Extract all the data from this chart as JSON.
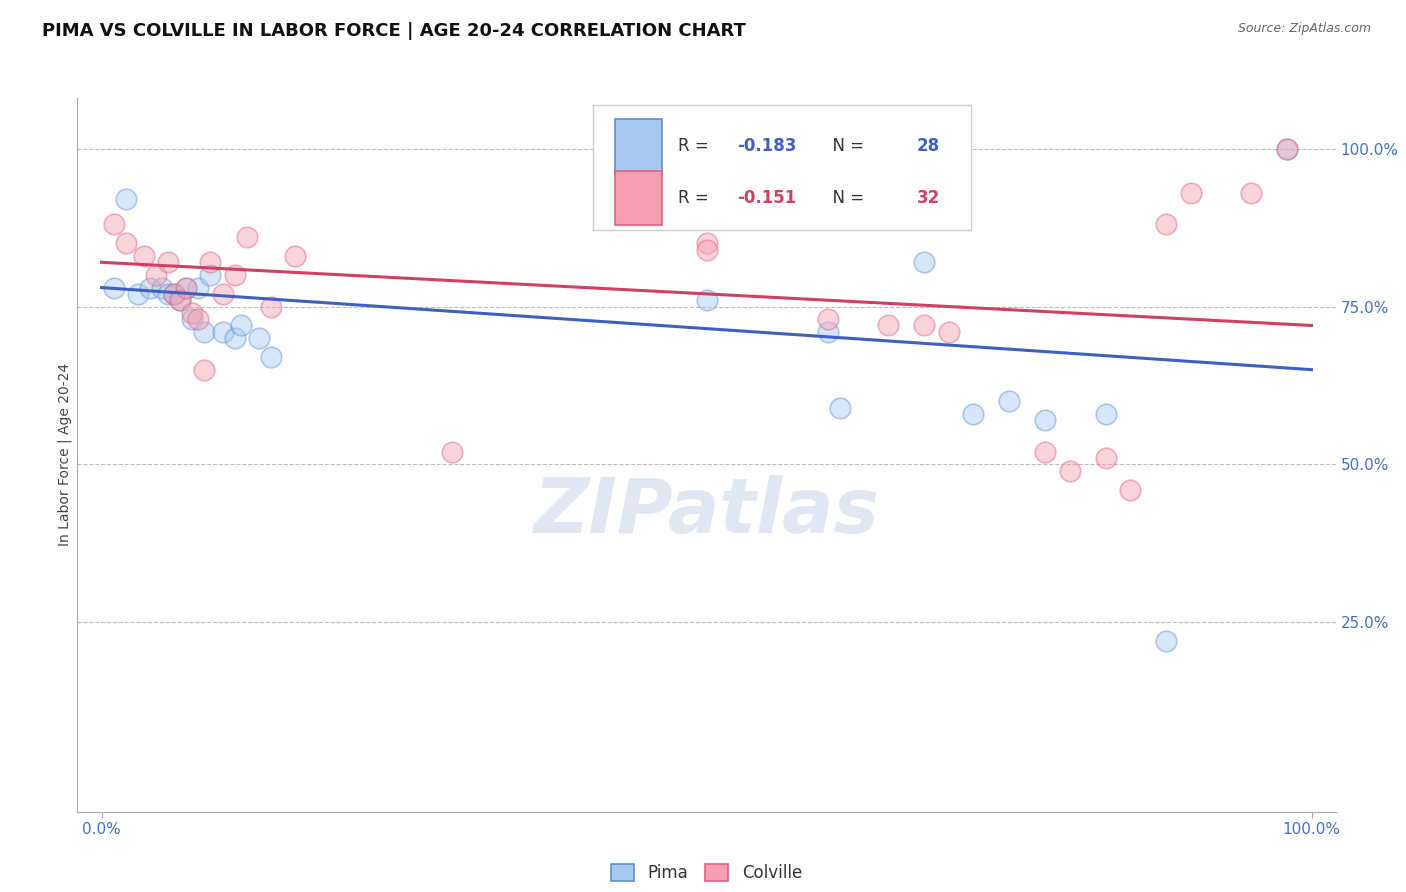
{
  "title": "PIMA VS COLVILLE IN LABOR FORCE | AGE 20-24 CORRELATION CHART",
  "source_text": "Source: ZipAtlas.com",
  "ylabel": "In Labor Force | Age 20-24",
  "watermark": "ZIPatlas",
  "blue_R": -0.183,
  "blue_N": 28,
  "pink_R": -0.151,
  "pink_N": 32,
  "legend_label_blue": "Pima",
  "legend_label_pink": "Colville",
  "xlim": [
    -0.02,
    1.02
  ],
  "ylim": [
    -0.05,
    1.08
  ],
  "x_ticks": [
    0.0,
    1.0
  ],
  "x_tick_labels": [
    "0.0%",
    "100.0%"
  ],
  "y_ticks_right": [
    0.25,
    0.5,
    0.75,
    1.0
  ],
  "y_tick_labels_right": [
    "25.0%",
    "50.0%",
    "75.0%",
    "100.0%"
  ],
  "blue_x": [
    0.01,
    0.02,
    0.03,
    0.04,
    0.05,
    0.055,
    0.06,
    0.065,
    0.07,
    0.075,
    0.08,
    0.085,
    0.09,
    0.1,
    0.11,
    0.115,
    0.13,
    0.14,
    0.5,
    0.6,
    0.61,
    0.68,
    0.72,
    0.75,
    0.78,
    0.83,
    0.88,
    0.98
  ],
  "blue_y": [
    0.78,
    0.92,
    0.77,
    0.78,
    0.78,
    0.77,
    0.77,
    0.76,
    0.78,
    0.73,
    0.78,
    0.71,
    0.8,
    0.71,
    0.7,
    0.72,
    0.7,
    0.67,
    0.76,
    0.71,
    0.59,
    0.82,
    0.58,
    0.6,
    0.57,
    0.58,
    0.22,
    1.0
  ],
  "pink_x": [
    0.01,
    0.02,
    0.035,
    0.045,
    0.055,
    0.06,
    0.065,
    0.07,
    0.075,
    0.08,
    0.085,
    0.09,
    0.1,
    0.11,
    0.12,
    0.14,
    0.16,
    0.29,
    0.5,
    0.5,
    0.6,
    0.65,
    0.68,
    0.7,
    0.78,
    0.8,
    0.83,
    0.85,
    0.88,
    0.9,
    0.95,
    0.98
  ],
  "pink_y": [
    0.88,
    0.85,
    0.83,
    0.8,
    0.82,
    0.77,
    0.76,
    0.78,
    0.74,
    0.73,
    0.65,
    0.82,
    0.77,
    0.8,
    0.86,
    0.75,
    0.83,
    0.52,
    0.85,
    0.84,
    0.73,
    0.72,
    0.72,
    0.71,
    0.52,
    0.49,
    0.51,
    0.46,
    0.88,
    0.93,
    0.93,
    1.0
  ],
  "blue_line_x": [
    0.0,
    1.0
  ],
  "blue_line_y": [
    0.78,
    0.65
  ],
  "pink_line_x": [
    0.0,
    1.0
  ],
  "pink_line_y": [
    0.82,
    0.72
  ],
  "blue_color": "#a8c8f0",
  "pink_color": "#f4a0b0",
  "blue_edge_color": "#6090d0",
  "pink_edge_color": "#e06080",
  "blue_line_color": "#4060c0",
  "pink_line_color": "#d04060",
  "grid_color": "#bbbbbb",
  "background_color": "#ffffff",
  "title_fontsize": 13,
  "label_fontsize": 10,
  "tick_fontsize": 11,
  "marker_size": 220,
  "marker_alpha": 0.45,
  "marker_linewidth": 1.2,
  "line_width": 2.2
}
